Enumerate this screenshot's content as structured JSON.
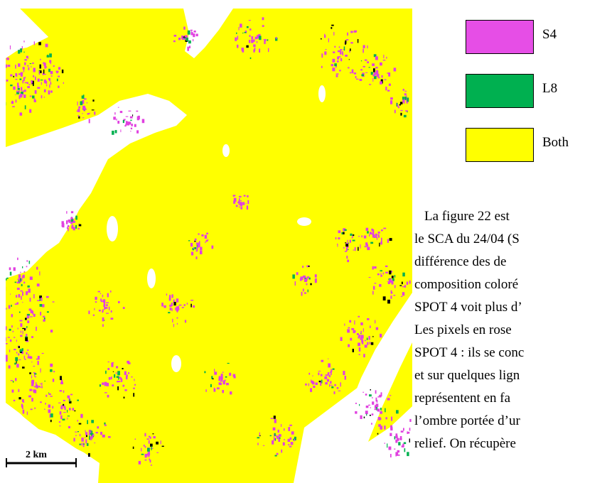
{
  "map": {
    "description_colors": {
      "background": "#ffffff",
      "both": "#ffff00",
      "s4": "#e040e0",
      "l8": "#00b050"
    },
    "scale_label": "2 km"
  },
  "legend": {
    "items": [
      {
        "label": "S4",
        "color": "#e64ee6"
      },
      {
        "label": "L8",
        "color": "#00b050"
      },
      {
        "label": "Both",
        "color": "#ffff00"
      }
    ]
  },
  "text": {
    "lines": [
      "La figure 22 est",
      "le SCA du 24/04 (S",
      "différence des de",
      "composition coloré",
      "SPOT 4 voit plus d’",
      "Les pixels en rose",
      "SPOT 4 : ils se conc",
      "et sur quelques lign",
      "représentent en fa",
      "l’ombre portée d’ur",
      "relief. On récupère"
    ]
  }
}
